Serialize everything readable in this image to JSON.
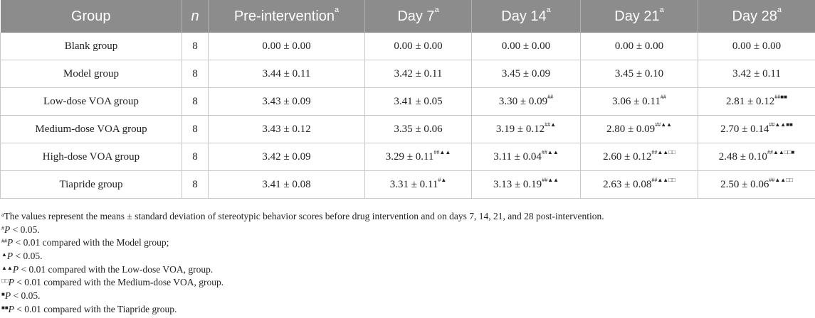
{
  "table": {
    "headers": [
      {
        "label": "Group",
        "sup": ""
      },
      {
        "label": "n",
        "sup": ""
      },
      {
        "label": "Pre-intervention",
        "sup": "a"
      },
      {
        "label": "Day 7",
        "sup": "a"
      },
      {
        "label": "Day 14",
        "sup": "a"
      },
      {
        "label": "Day 21",
        "sup": "a"
      },
      {
        "label": "Day 28",
        "sup": "a"
      }
    ],
    "rows": [
      {
        "group": "Blank group",
        "n": "8",
        "cells": [
          {
            "v": "0.00 ± 0.00",
            "s": ""
          },
          {
            "v": "0.00 ± 0.00",
            "s": ""
          },
          {
            "v": "0.00 ± 0.00",
            "s": ""
          },
          {
            "v": "0.00 ± 0.00",
            "s": ""
          },
          {
            "v": "0.00 ± 0.00",
            "s": ""
          }
        ]
      },
      {
        "group": "Model group",
        "n": "8",
        "cells": [
          {
            "v": "3.44 ± 0.11",
            "s": ""
          },
          {
            "v": "3.42 ± 0.11",
            "s": ""
          },
          {
            "v": "3.45 ± 0.09",
            "s": ""
          },
          {
            "v": "3.45 ± 0.10",
            "s": ""
          },
          {
            "v": "3.42 ± 0.11",
            "s": ""
          }
        ]
      },
      {
        "group": "Low-dose VOA group",
        "n": "8",
        "cells": [
          {
            "v": "3.43 ± 0.09",
            "s": ""
          },
          {
            "v": "3.41 ± 0.05",
            "s": ""
          },
          {
            "v": "3.30 ± 0.09",
            "s": "##"
          },
          {
            "v": "3.06 ± 0.11",
            "s": "##"
          },
          {
            "v": "2.81 ± 0.12",
            "s": "##■■"
          }
        ]
      },
      {
        "group": "Medium-dose VOA group",
        "n": "8",
        "cells": [
          {
            "v": "3.43 ± 0.12",
            "s": ""
          },
          {
            "v": "3.35 ± 0.06",
            "s": ""
          },
          {
            "v": "3.19 ± 0.12",
            "s": "##▲"
          },
          {
            "v": "2.80 ± 0.09",
            "s": "##▲▲"
          },
          {
            "v": "2.70 ± 0.14",
            "s": "##▲▲■■"
          }
        ]
      },
      {
        "group": "High-dose VOA group",
        "n": "8",
        "cells": [
          {
            "v": "3.42 ± 0.09",
            "s": ""
          },
          {
            "v": "3.29 ± 0.11",
            "s": "##▲▲"
          },
          {
            "v": "3.11 ± 0.04",
            "s": "##▲▲"
          },
          {
            "v": "2.60 ± 0.12",
            "s": "##▲▲□□"
          },
          {
            "v": "2.48 ± 0.10",
            "s": "##▲▲□□■"
          }
        ]
      },
      {
        "group": "Tiapride group",
        "n": "8",
        "cells": [
          {
            "v": "3.41 ± 0.08",
            "s": ""
          },
          {
            "v": "3.31 ± 0.11",
            "s": "#▲"
          },
          {
            "v": "3.13 ± 0.19",
            "s": "##▲▲"
          },
          {
            "v": "2.63 ± 0.08",
            "s": "##▲▲□□"
          },
          {
            "v": "2.50 ± 0.06",
            "s": "##▲▲□□"
          }
        ]
      }
    ]
  },
  "footnotes": [
    {
      "mark": "a",
      "p": "",
      "text": "The values represent the means ± standard deviation of stereotypic behavior scores before drug intervention and on days 7, 14, 21, and 28 post-intervention."
    },
    {
      "mark": "#",
      "p": "P",
      "text": " < 0.05."
    },
    {
      "mark": "##",
      "p": "P",
      "text": " < 0.01 compared with the Model group;"
    },
    {
      "mark": "▲",
      "p": "P",
      "text": " < 0.05."
    },
    {
      "mark": "▲▲",
      "p": "P",
      "text": " < 0.01 compared with the Low-dose VOA, group."
    },
    {
      "mark": "□□",
      "p": "P",
      "text": " < 0.01 compared with the Medium-dose VOA, group."
    },
    {
      "mark": "■",
      "p": "P",
      "text": " < 0.05."
    },
    {
      "mark": "■■",
      "p": "P",
      "text": " < 0.01 compared with the Tiapride group."
    }
  ]
}
